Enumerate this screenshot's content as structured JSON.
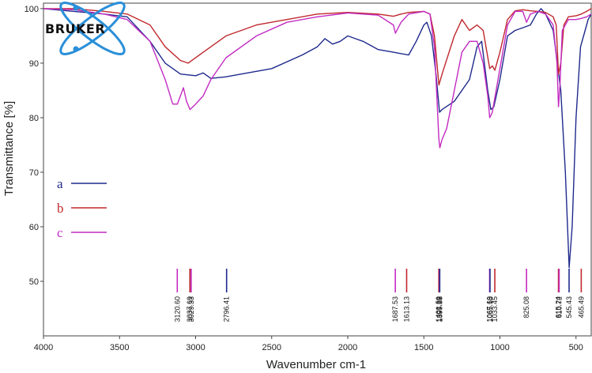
{
  "chart_data": {
    "type": "line",
    "xlabel": "Wavenumber cm-1",
    "ylabel": "Transmittance [%]",
    "xlim": [
      4000,
      400
    ],
    "ylim": [
      40,
      101
    ],
    "x_ticks": [
      4000,
      3500,
      3000,
      2500,
      2000,
      1500,
      1000,
      500
    ],
    "y_ticks": [
      50,
      60,
      70,
      80,
      90,
      100
    ],
    "logo": "BRUKER",
    "legend_position": "left",
    "series": [
      {
        "name": "a",
        "color": "#1f2a8c",
        "points": [
          [
            4000,
            100
          ],
          [
            3800,
            99.5
          ],
          [
            3600,
            99
          ],
          [
            3450,
            98.5
          ],
          [
            3300,
            94
          ],
          [
            3200,
            90
          ],
          [
            3100,
            88
          ],
          [
            3000,
            87.7
          ],
          [
            2950,
            88.2
          ],
          [
            2900,
            87.2
          ],
          [
            2800,
            87.5
          ],
          [
            2700,
            88
          ],
          [
            2500,
            89
          ],
          [
            2300,
            91.5
          ],
          [
            2200,
            93
          ],
          [
            2150,
            94.5
          ],
          [
            2100,
            93.5
          ],
          [
            2050,
            94
          ],
          [
            2000,
            95
          ],
          [
            1950,
            94.5
          ],
          [
            1900,
            94
          ],
          [
            1800,
            92.5
          ],
          [
            1700,
            92
          ],
          [
            1600,
            91.5
          ],
          [
            1550,
            94
          ],
          [
            1500,
            97
          ],
          [
            1480,
            97.5
          ],
          [
            1450,
            95
          ],
          [
            1420,
            88
          ],
          [
            1397,
            81
          ],
          [
            1380,
            81.5
          ],
          [
            1300,
            83
          ],
          [
            1200,
            87
          ],
          [
            1150,
            93
          ],
          [
            1120,
            94
          ],
          [
            1080,
            85
          ],
          [
            1060,
            81.5
          ],
          [
            1040,
            82
          ],
          [
            1000,
            87
          ],
          [
            950,
            95
          ],
          [
            900,
            96
          ],
          [
            850,
            96.5
          ],
          [
            800,
            97
          ],
          [
            760,
            99
          ],
          [
            730,
            100
          ],
          [
            700,
            99
          ],
          [
            650,
            96
          ],
          [
            600,
            85
          ],
          [
            570,
            70
          ],
          [
            545,
            52.5
          ],
          [
            525,
            60
          ],
          [
            500,
            80
          ],
          [
            470,
            93
          ],
          [
            440,
            96
          ],
          [
            420,
            98
          ],
          [
            400,
            99
          ]
        ]
      },
      {
        "name": "b",
        "color": "#c0282d",
        "points": [
          [
            4000,
            100
          ],
          [
            3800,
            100
          ],
          [
            3600,
            99.5
          ],
          [
            3450,
            99
          ],
          [
            3300,
            97
          ],
          [
            3200,
            93
          ],
          [
            3100,
            90.5
          ],
          [
            3050,
            90
          ],
          [
            2950,
            92
          ],
          [
            2800,
            95
          ],
          [
            2600,
            97
          ],
          [
            2400,
            98
          ],
          [
            2200,
            99
          ],
          [
            2000,
            99.3
          ],
          [
            1800,
            99
          ],
          [
            1700,
            98.6
          ],
          [
            1650,
            99
          ],
          [
            1600,
            99.3
          ],
          [
            1500,
            99.5
          ],
          [
            1460,
            99
          ],
          [
            1430,
            95
          ],
          [
            1401,
            86
          ],
          [
            1380,
            88
          ],
          [
            1300,
            95
          ],
          [
            1250,
            98
          ],
          [
            1200,
            96
          ],
          [
            1150,
            97
          ],
          [
            1110,
            96
          ],
          [
            1067,
            89
          ],
          [
            1050,
            89.5
          ],
          [
            1033,
            88.7
          ],
          [
            1000,
            92
          ],
          [
            950,
            98
          ],
          [
            900,
            99.6
          ],
          [
            850,
            99.8
          ],
          [
            800,
            99.6
          ],
          [
            750,
            99.5
          ],
          [
            700,
            99.3
          ],
          [
            650,
            98.5
          ],
          [
            630,
            97
          ],
          [
            615,
            88
          ],
          [
            600,
            90
          ],
          [
            580,
            97
          ],
          [
            550,
            98.5
          ],
          [
            500,
            98.7
          ],
          [
            465,
            99
          ],
          [
            430,
            99.5
          ],
          [
            400,
            100
          ]
        ]
      },
      {
        "name": "c",
        "color": "#c22bc2",
        "points": [
          [
            4000,
            100
          ],
          [
            3800,
            99.8
          ],
          [
            3600,
            99
          ],
          [
            3450,
            98
          ],
          [
            3300,
            94
          ],
          [
            3200,
            87
          ],
          [
            3150,
            82.5
          ],
          [
            3120,
            82.5
          ],
          [
            3100,
            84
          ],
          [
            3080,
            85.5
          ],
          [
            3060,
            83
          ],
          [
            3037,
            81.5
          ],
          [
            3000,
            82.5
          ],
          [
            2950,
            84
          ],
          [
            2900,
            87
          ],
          [
            2800,
            91
          ],
          [
            2600,
            95
          ],
          [
            2400,
            97.5
          ],
          [
            2200,
            98.5
          ],
          [
            2000,
            99.2
          ],
          [
            1800,
            98.8
          ],
          [
            1700,
            97
          ],
          [
            1687,
            95.5
          ],
          [
            1650,
            97.5
          ],
          [
            1600,
            99
          ],
          [
            1500,
            99.5
          ],
          [
            1460,
            99
          ],
          [
            1430,
            93
          ],
          [
            1401,
            76
          ],
          [
            1395,
            74.5
          ],
          [
            1380,
            76
          ],
          [
            1350,
            78
          ],
          [
            1300,
            85
          ],
          [
            1250,
            92
          ],
          [
            1200,
            94
          ],
          [
            1150,
            94
          ],
          [
            1110,
            90
          ],
          [
            1080,
            84
          ],
          [
            1067,
            80
          ],
          [
            1050,
            81
          ],
          [
            1000,
            89
          ],
          [
            950,
            97
          ],
          [
            900,
            99.5
          ],
          [
            850,
            99.5
          ],
          [
            825,
            97.5
          ],
          [
            800,
            99
          ],
          [
            750,
            99.5
          ],
          [
            700,
            99
          ],
          [
            650,
            97
          ],
          [
            625,
            90
          ],
          [
            615,
            82
          ],
          [
            605,
            86
          ],
          [
            590,
            96
          ],
          [
            550,
            98
          ],
          [
            500,
            98
          ],
          [
            465,
            98.2
          ],
          [
            430,
            98.5
          ],
          [
            400,
            99
          ]
        ]
      }
    ],
    "peak_markers": [
      {
        "label": "3120.60",
        "x": 3120.6,
        "series": "c"
      },
      {
        "label": "3037.69",
        "x": 3037.69,
        "series": "b"
      },
      {
        "label": "3029.33",
        "x": 3029.33,
        "series": "c"
      },
      {
        "label": "2796.41",
        "x": 2796.41,
        "series": "a"
      },
      {
        "label": "1687.53",
        "x": 1687.53,
        "series": "c"
      },
      {
        "label": "1613.13",
        "x": 1613.13,
        "series": "b"
      },
      {
        "label": "1401.59",
        "x": 1401.59,
        "series": "b"
      },
      {
        "label": "1397.22",
        "x": 1397.22,
        "series": "c"
      },
      {
        "label": "1395.55",
        "x": 1395.55,
        "series": "a"
      },
      {
        "label": "1067.69",
        "x": 1067.69,
        "series": "c"
      },
      {
        "label": "1065.18",
        "x": 1065.18,
        "series": "a"
      },
      {
        "label": "1033.45",
        "x": 1033.45,
        "series": "b"
      },
      {
        "label": "825.08",
        "x": 825.08,
        "series": "c"
      },
      {
        "label": "615.24",
        "x": 615.24,
        "series": "b"
      },
      {
        "label": "610.72",
        "x": 610.72,
        "series": "c"
      },
      {
        "label": "545.43",
        "x": 545.43,
        "series": "a"
      },
      {
        "label": "465.49",
        "x": 465.49,
        "series": "b"
      }
    ]
  }
}
